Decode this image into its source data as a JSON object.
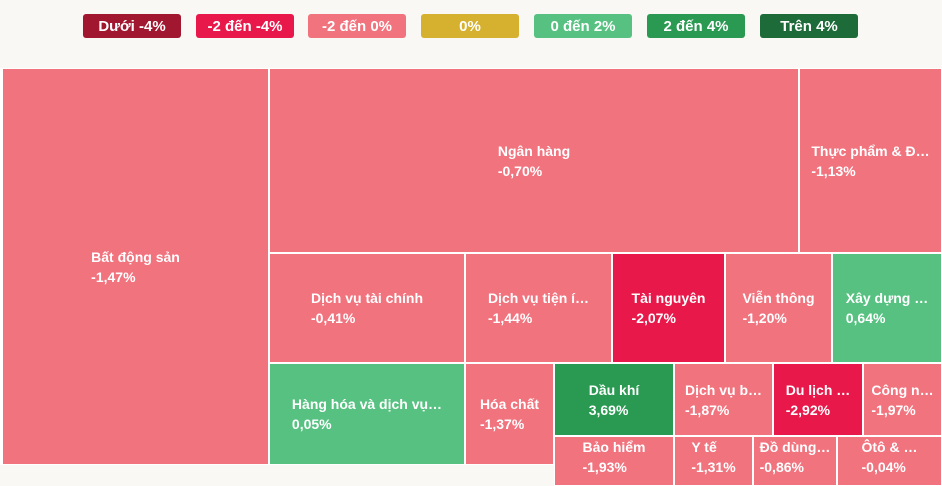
{
  "chart_data": {
    "type": "treemap",
    "legend": [
      {
        "label": "Dưới -4%",
        "color": "#a0172f"
      },
      {
        "label": "-2 đến -4%",
        "color": "#e8194a"
      },
      {
        "label": "-2 đến 0%",
        "color": "#f0737e"
      },
      {
        "label": "0%",
        "color": "#d6b12f"
      },
      {
        "label": "0 đến 2%",
        "color": "#56c180"
      },
      {
        "label": "2 đến 4%",
        "color": "#2a9a52"
      },
      {
        "label": "Trên 4%",
        "color": "#1e6b3a"
      }
    ],
    "categories": [
      "Bất động sản",
      "Ngân hàng",
      "Thực phẩm & Đ…",
      "Dịch vụ tài chính",
      "Dịch vụ tiện í…",
      "Tài nguyên",
      "Viễn thông",
      "Xây dựng …",
      "Hàng hóa và dịch vụ…",
      "Hóa chất",
      "Dầu khí",
      "Dịch vụ b…",
      "Du lịch …",
      "Công n…",
      "Bảo hiểm",
      "Y tế",
      "Đồ dùng…",
      "Ôtô & …"
    ],
    "values": [
      -1.47,
      -0.7,
      -1.13,
      -0.41,
      -1.44,
      -2.07,
      -1.2,
      0.64,
      0.05,
      -1.37,
      3.69,
      -1.87,
      -2.92,
      -1.97,
      -1.93,
      -1.31,
      -0.86,
      -0.04
    ],
    "value_labels": [
      "-1,47%",
      "-0,70%",
      "-1,13%",
      "-0,41%",
      "-1,44%",
      "-2,07%",
      "-1,20%",
      "0,64%",
      "0,05%",
      "-1,37%",
      "3,69%",
      "-1,87%",
      "-2,92%",
      "-1,97%",
      "-1,93%",
      "-1,31%",
      "-0,86%",
      "-0,04%"
    ],
    "colors": [
      "#f0737e",
      "#f0737e",
      "#f0737e",
      "#f0737e",
      "#f0737e",
      "#e8194a",
      "#f0737e",
      "#56c180",
      "#56c180",
      "#f0737e",
      "#2a9a52",
      "#f0737e",
      "#e8194a",
      "#f0737e",
      "#f0737e",
      "#f0737e",
      "#f0737e",
      "#f0737e"
    ]
  }
}
